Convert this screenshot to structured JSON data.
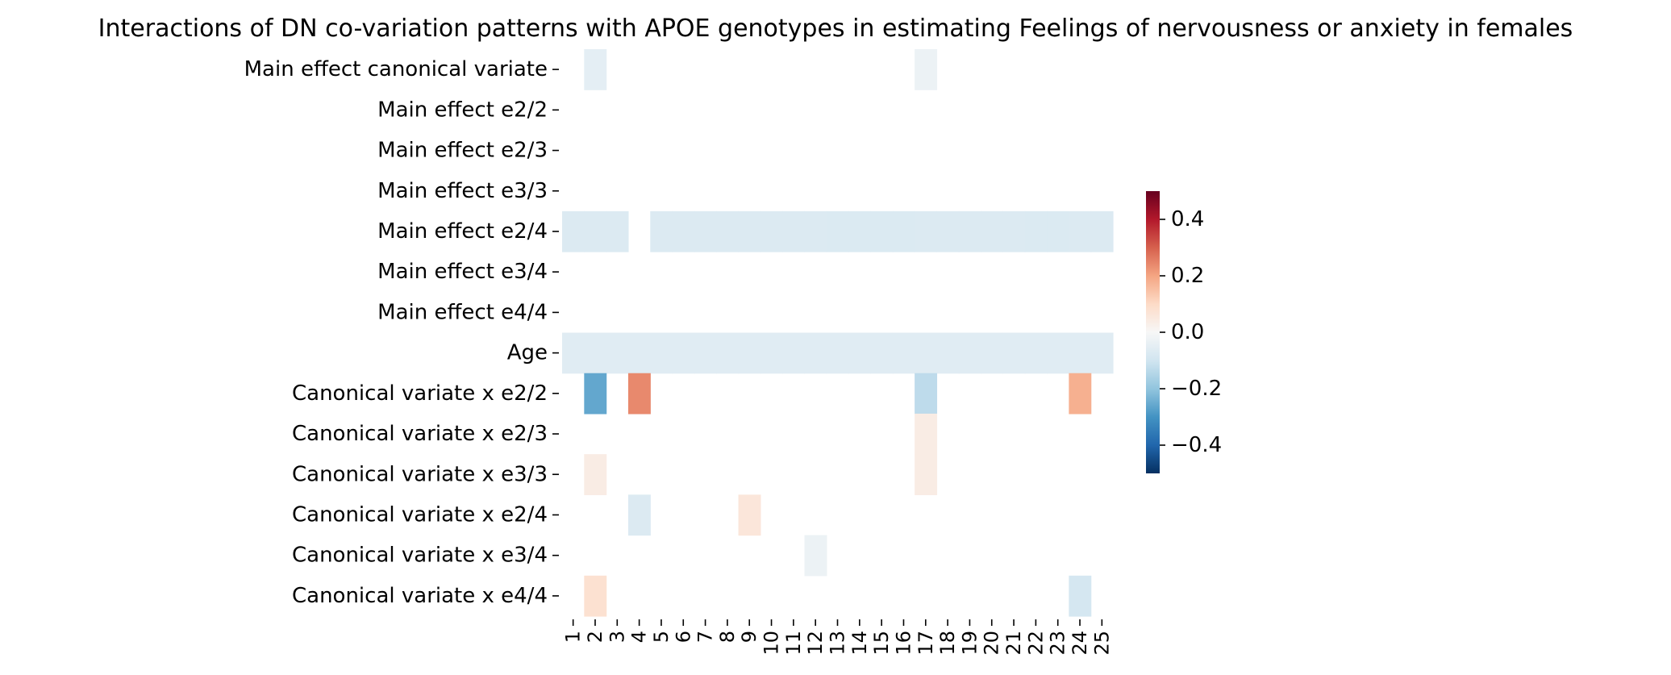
{
  "chart_data": {
    "type": "heatmap",
    "title": "Interactions of DN co-variation patterns with APOE genotypes in estimating Feelings of nervousness or anxiety in females",
    "rows": [
      "Main effect canonical variate",
      "Main effect e2/2",
      "Main effect e2/3",
      "Main effect e3/3",
      "Main effect e2/4",
      "Main effect e3/4",
      "Main effect e4/4",
      "Age",
      "Canonical variate x e2/2",
      "Canonical variate x e2/3",
      "Canonical variate x e3/3",
      "Canonical variate x e2/4",
      "Canonical variate x e3/4",
      "Canonical variate x e4/4"
    ],
    "columns": [
      "1",
      "2",
      "3",
      "4",
      "5",
      "6",
      "7",
      "8",
      "9",
      "10",
      "11",
      "12",
      "13",
      "14",
      "15",
      "16",
      "17",
      "18",
      "19",
      "20",
      "21",
      "22",
      "23",
      "24",
      "25"
    ],
    "values": [
      [
        null,
        -0.05,
        null,
        null,
        null,
        null,
        null,
        null,
        null,
        null,
        null,
        null,
        null,
        null,
        null,
        null,
        -0.03,
        null,
        null,
        null,
        null,
        null,
        null,
        null,
        null
      ],
      [
        null,
        null,
        null,
        null,
        null,
        null,
        null,
        null,
        null,
        null,
        null,
        null,
        null,
        null,
        null,
        null,
        null,
        null,
        null,
        null,
        null,
        null,
        null,
        null,
        null
      ],
      [
        null,
        null,
        null,
        null,
        null,
        null,
        null,
        null,
        null,
        null,
        null,
        null,
        null,
        null,
        null,
        null,
        null,
        null,
        null,
        null,
        null,
        null,
        null,
        null,
        null
      ],
      [
        null,
        null,
        null,
        null,
        null,
        null,
        null,
        null,
        null,
        null,
        null,
        null,
        null,
        null,
        null,
        null,
        null,
        null,
        null,
        null,
        null,
        null,
        null,
        null,
        null
      ],
      [
        -0.07,
        -0.07,
        -0.07,
        null,
        -0.07,
        -0.07,
        -0.07,
        -0.07,
        -0.07,
        -0.07,
        -0.07,
        -0.07,
        -0.075,
        -0.075,
        -0.075,
        -0.075,
        -0.07,
        -0.07,
        -0.07,
        -0.07,
        -0.07,
        -0.075,
        -0.075,
        -0.07,
        -0.07
      ],
      [
        null,
        null,
        null,
        null,
        null,
        null,
        null,
        null,
        null,
        null,
        null,
        null,
        null,
        null,
        null,
        null,
        null,
        null,
        null,
        null,
        null,
        null,
        null,
        null,
        null
      ],
      [
        null,
        null,
        null,
        null,
        null,
        null,
        null,
        null,
        null,
        null,
        null,
        null,
        null,
        null,
        null,
        null,
        null,
        null,
        null,
        null,
        null,
        null,
        null,
        null,
        null
      ],
      [
        -0.06,
        -0.06,
        -0.06,
        -0.06,
        -0.06,
        -0.06,
        -0.06,
        -0.06,
        -0.06,
        -0.06,
        -0.06,
        -0.06,
        -0.06,
        -0.06,
        -0.06,
        -0.06,
        -0.06,
        -0.06,
        -0.06,
        -0.06,
        -0.06,
        -0.06,
        -0.06,
        -0.06,
        -0.06
      ],
      [
        null,
        -0.26,
        null,
        0.24,
        null,
        null,
        null,
        null,
        null,
        null,
        null,
        null,
        null,
        null,
        null,
        null,
        -0.13,
        null,
        null,
        null,
        null,
        null,
        null,
        0.18,
        null
      ],
      [
        null,
        null,
        null,
        null,
        null,
        null,
        null,
        null,
        null,
        null,
        null,
        null,
        null,
        null,
        null,
        null,
        0.04,
        null,
        null,
        null,
        null,
        null,
        null,
        null,
        null
      ],
      [
        null,
        0.04,
        null,
        null,
        null,
        null,
        null,
        null,
        null,
        null,
        null,
        null,
        null,
        null,
        null,
        null,
        0.04,
        null,
        null,
        null,
        null,
        null,
        null,
        null,
        null
      ],
      [
        null,
        null,
        null,
        -0.07,
        null,
        null,
        null,
        null,
        0.06,
        null,
        null,
        null,
        null,
        null,
        null,
        null,
        null,
        null,
        null,
        null,
        null,
        null,
        null,
        null,
        null
      ],
      [
        null,
        null,
        null,
        null,
        null,
        null,
        null,
        null,
        null,
        null,
        null,
        -0.03,
        null,
        null,
        null,
        null,
        null,
        null,
        null,
        null,
        null,
        null,
        null,
        null,
        null
      ],
      [
        null,
        0.08,
        null,
        null,
        null,
        null,
        null,
        null,
        null,
        null,
        null,
        null,
        null,
        null,
        null,
        null,
        null,
        null,
        null,
        null,
        null,
        null,
        null,
        -0.09,
        null
      ]
    ],
    "vmin": -0.5,
    "vmax": 0.5,
    "colormap": "RdBu_r",
    "colorbar_ticks": [
      "0.4",
      "0.2",
      "0.0",
      "−0.2",
      "−0.4"
    ],
    "colorbar_tick_values": [
      0.4,
      0.2,
      0.0,
      -0.2,
      -0.4
    ]
  }
}
